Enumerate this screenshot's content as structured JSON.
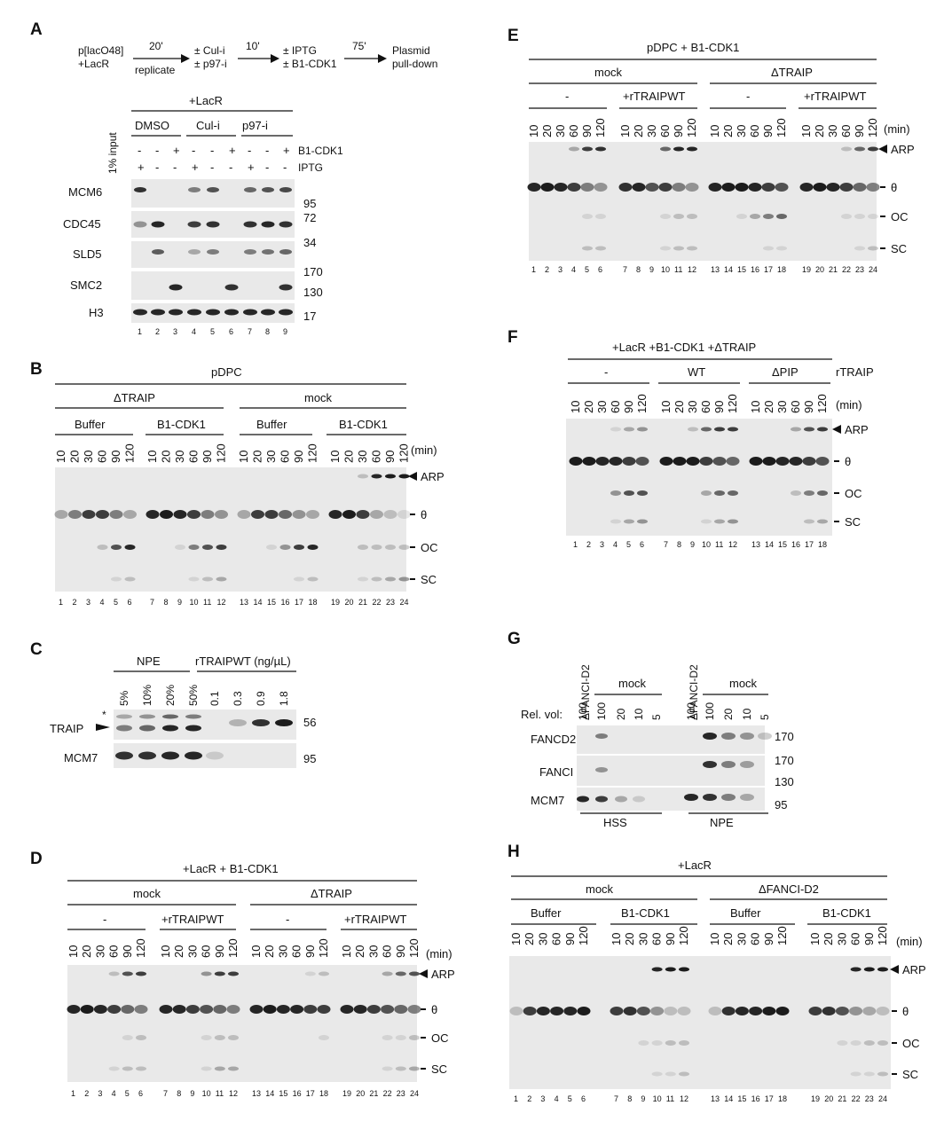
{
  "common": {
    "times": [
      "10",
      "20",
      "30",
      "60",
      "90",
      "120"
    ],
    "min_label": "(min)",
    "species": {
      "arp": "ARP",
      "theta": "θ",
      "oc": "OC",
      "sc": "SC"
    }
  },
  "panelA": {
    "letter": "A",
    "scheme": {
      "start_top": "p[lacO48]",
      "start_bottom": "+LacR",
      "t1": "20'",
      "s1": "replicate",
      "mid1_top": "± Cul-i",
      "mid1_bottom": "± p97-i",
      "t2": "10'",
      "mid2_top": "± IPTG",
      "mid2_bottom": "± B1-CDK1",
      "t3": "75'",
      "end_top": "Plasmid",
      "end_bottom": "pull-down"
    },
    "lacr_header": "+LacR",
    "groups": [
      "DMSO",
      "Cul-i",
      "p97-i"
    ],
    "input_label": "1% input",
    "row_b1": [
      "-",
      "-",
      "+",
      "-",
      "-",
      "+",
      "-",
      "-",
      "+"
    ],
    "row_iptg": [
      "+",
      "-",
      "-",
      "+",
      "-",
      "-",
      "+",
      "-",
      "-"
    ],
    "row_b1_label": "B1-CDK1",
    "row_iptg_label": "IPTG",
    "blots": [
      "MCM6",
      "CDC45",
      "SLD5",
      "SMC2",
      "H3"
    ],
    "markers": [
      "95",
      "72",
      "34",
      "170",
      "130",
      "17"
    ],
    "lanes": [
      "1",
      "2",
      "3",
      "4",
      "5",
      "6",
      "7",
      "8",
      "9"
    ]
  },
  "panelB": {
    "letter": "B",
    "title": "pDPC",
    "groups": [
      "ΔTRAIP",
      "mock"
    ],
    "subgroups": [
      "Buffer",
      "B1-CDK1",
      "Buffer",
      "B1-CDK1"
    ],
    "lanes": [
      "1",
      "2",
      "3",
      "4",
      "5",
      "6",
      "7",
      "8",
      "9",
      "10",
      "11",
      "12",
      "13",
      "14",
      "15",
      "16",
      "17",
      "18",
      "19",
      "20",
      "21",
      "22",
      "23",
      "24"
    ]
  },
  "panelC": {
    "letter": "C",
    "npe": "NPE",
    "rtraip": "rTRAIPWT (ng/µL)",
    "npe_lanes": [
      "5%",
      "10%",
      "20%",
      "50%"
    ],
    "rt_lanes": [
      "0.1",
      "0.3",
      "0.9",
      "1.8"
    ],
    "blots": [
      "TRAIP",
      "MCM7"
    ],
    "star": "*",
    "markers": [
      "56",
      "95"
    ]
  },
  "panelD": {
    "letter": "D",
    "title": "+LacR + B1-CDK1",
    "groups": [
      "mock",
      "ΔTRAIP"
    ],
    "subgroups": [
      "-",
      "+rTRAIPWT",
      "-",
      "+rTRAIPWT"
    ],
    "lanes": [
      "1",
      "2",
      "3",
      "4",
      "5",
      "6",
      "7",
      "8",
      "9",
      "10",
      "11",
      "12",
      "13",
      "14",
      "15",
      "16",
      "17",
      "18",
      "19",
      "20",
      "21",
      "22",
      "23",
      "24"
    ]
  },
  "panelE": {
    "letter": "E",
    "title": "pDPC + B1-CDK1",
    "groups": [
      "mock",
      "ΔTRAIP"
    ],
    "subgroups": [
      "-",
      "+rTRAIPWT",
      "-",
      "+rTRAIPWT"
    ],
    "lanes": [
      "1",
      "2",
      "3",
      "4",
      "5",
      "6",
      "7",
      "8",
      "9",
      "10",
      "11",
      "12",
      "13",
      "14",
      "15",
      "16",
      "17",
      "18",
      "19",
      "20",
      "21",
      "22",
      "23",
      "24"
    ]
  },
  "panelF": {
    "letter": "F",
    "title": "+LacR +B1-CDK1 +ΔTRAIP",
    "subgroups": [
      "-",
      "WT",
      "ΔPIP"
    ],
    "rtraip": "rTRAIP",
    "lanes": [
      "1",
      "2",
      "3",
      "4",
      "5",
      "6",
      "7",
      "8",
      "9",
      "10",
      "11",
      "12",
      "13",
      "14",
      "15",
      "16",
      "17",
      "18"
    ]
  },
  "panelG": {
    "letter": "G",
    "depl": "ΔFANCI-D2",
    "mock": "mock",
    "relvol": "Rel. vol:",
    "vols": [
      "100",
      "100",
      "20",
      "10",
      "5"
    ],
    "blots": [
      "FANCD2",
      "FANCI",
      "MCM7"
    ],
    "markers": [
      "170",
      "170",
      "130",
      "95"
    ],
    "extracts": [
      "HSS",
      "NPE"
    ]
  },
  "panelH": {
    "letter": "H",
    "title": "+LacR",
    "groups": [
      "mock",
      "ΔFANCI-D2"
    ],
    "subgroups": [
      "Buffer",
      "B1-CDK1",
      "Buffer",
      "B1-CDK1"
    ],
    "lanes": [
      "1",
      "2",
      "3",
      "4",
      "5",
      "6",
      "7",
      "8",
      "9",
      "10",
      "11",
      "12",
      "13",
      "14",
      "15",
      "16",
      "17",
      "18",
      "19",
      "20",
      "21",
      "22",
      "23",
      "24"
    ]
  }
}
